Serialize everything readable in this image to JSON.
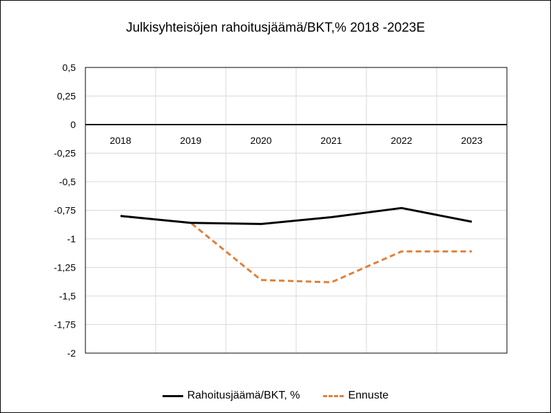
{
  "chart_data": {
    "type": "line",
    "title": "Julkisyhteisöjen rahoitusjäämä/BKT,%  2018 -2023E",
    "xlabel": "",
    "ylabel": "",
    "categories": [
      "2018",
      "2019",
      "2020",
      "2021",
      "2022",
      "2023"
    ],
    "ylim": [
      -2,
      0.5
    ],
    "yticks": [
      0.5,
      0.25,
      0,
      -0.25,
      -0.5,
      -0.75,
      -1,
      -1.25,
      -1.5,
      -1.75,
      -2
    ],
    "ytick_labels": [
      "0,5",
      "0,25",
      "0",
      "-0,25",
      "-0,5",
      "-0,75",
      "-1",
      "-1,25",
      "-1,5",
      "-1,75",
      "-2"
    ],
    "grid": true,
    "legend_position": "bottom",
    "series": [
      {
        "name": "Rahoitusjäämä/BKT, %",
        "values": [
          -0.8,
          -0.86,
          -0.87,
          -0.81,
          -0.73,
          -0.85
        ],
        "color": "#000000",
        "style": "solid"
      },
      {
        "name": "Ennuste",
        "values": [
          -0.8,
          -0.86,
          -1.36,
          -1.38,
          -1.11,
          -1.11
        ],
        "color": "#E07F36",
        "style": "dashed"
      }
    ]
  }
}
